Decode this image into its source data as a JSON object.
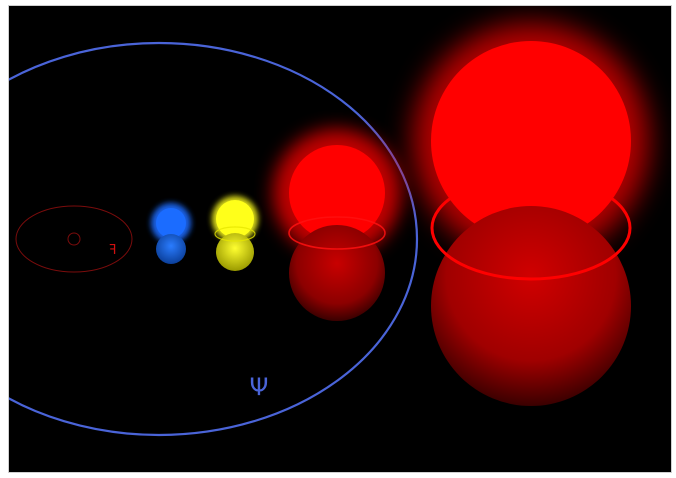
{
  "colors": {
    "background": "#000000",
    "orbit_outer": "#4a64d8",
    "orbit_inner": "#7a0c0c",
    "blue_star": "#1b6cff",
    "yellow_star": "#ffff1a",
    "red_star": "#ff0000",
    "dark_red": "#8a0000"
  },
  "labels": {
    "psi_symbol": "Ψ",
    "small_marker": "ꟻ"
  },
  "icons": [
    "blue-star-icon",
    "yellow-star-icon",
    "red-giant-icon",
    "red-supergiant-icon"
  ]
}
